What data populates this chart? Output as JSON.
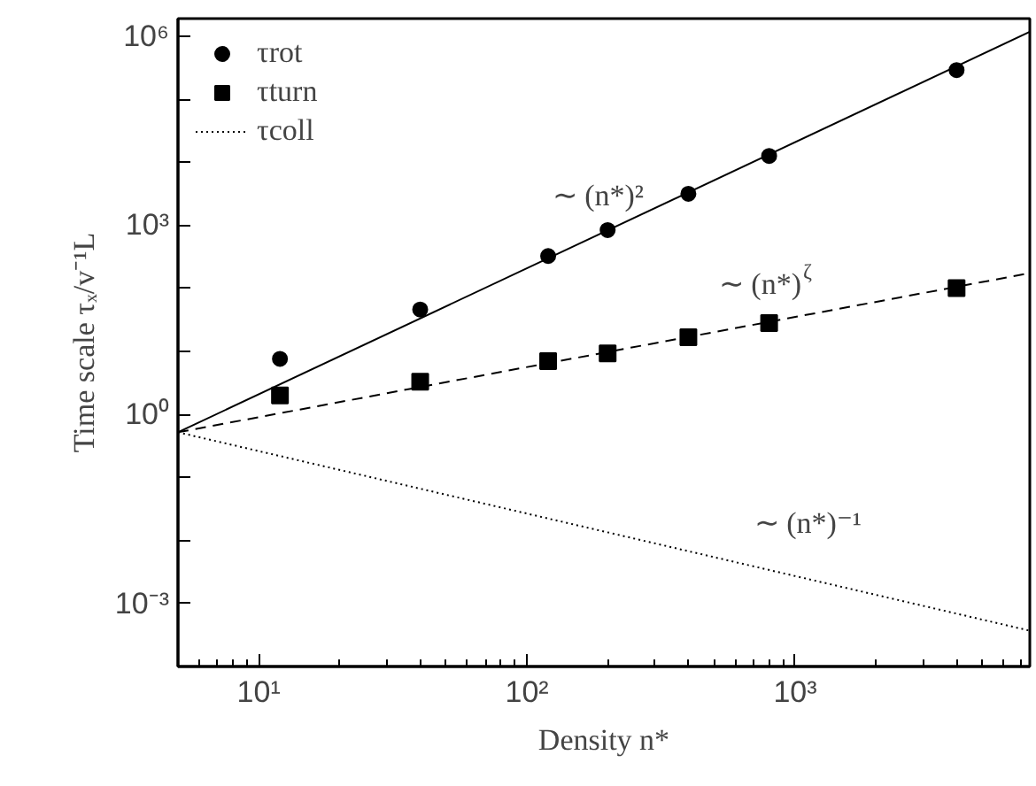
{
  "chart_data": {
    "type": "scatter",
    "xlabel": "Density n*",
    "ylabel": "Time scale τₓ/v⁻¹L",
    "log": "xy",
    "xlim": [
      5,
      7500
    ],
    "ylim": [
      0.0001,
      1900000
    ],
    "xticks": [
      {
        "value": 10,
        "label": "10¹"
      },
      {
        "value": 100,
        "label": "10²"
      },
      {
        "value": 1000,
        "label": "10³"
      }
    ],
    "yticks": [
      {
        "value": 0.001,
        "label": "10⁻³"
      },
      {
        "value": 0.01,
        "label": null
      },
      {
        "value": 0.1,
        "label": null
      },
      {
        "value": 1,
        "label": "10⁰"
      },
      {
        "value": 10,
        "label": null
      },
      {
        "value": 100,
        "label": null
      },
      {
        "value": 1000,
        "label": "10³"
      },
      {
        "value": 10000,
        "label": null
      },
      {
        "value": 100000,
        "label": null
      },
      {
        "value": 1000000,
        "label": "10⁶"
      }
    ],
    "grid": false,
    "legend": "top left",
    "series": [
      {
        "name": "τrot",
        "marker": "circle",
        "color": "#000000",
        "x": [
          12,
          40,
          120,
          200,
          400,
          800,
          4000
        ],
        "values": [
          7.6,
          46,
          325,
          840,
          3160,
          12600,
          290000
        ]
      },
      {
        "name": "τturn",
        "marker": "square",
        "color": "#000000",
        "x": [
          12,
          40,
          120,
          200,
          400,
          800,
          4000
        ],
        "values": [
          2.0,
          3.3,
          7.0,
          9.3,
          16.7,
          28,
          101
        ]
      },
      {
        "type": "line",
        "line_style": "solid",
        "color": "#000000",
        "x": [
          5,
          7500
        ],
        "values": [
          0.52,
          1170000
        ]
      },
      {
        "type": "line",
        "line_style": "dashed",
        "color": "#000000",
        "x": [
          5,
          7500
        ],
        "values": [
          0.52,
          174
        ]
      },
      {
        "name": "τcoll",
        "type": "line",
        "line_style": "dotted",
        "color": "#000000",
        "x": [
          5,
          7500
        ],
        "values": [
          0.52,
          0.00037
        ]
      }
    ],
    "annotations": [
      "∼ (n*)²",
      "∼ (n*)$^{ζ}$",
      "∼ (n*)⁻¹"
    ]
  }
}
